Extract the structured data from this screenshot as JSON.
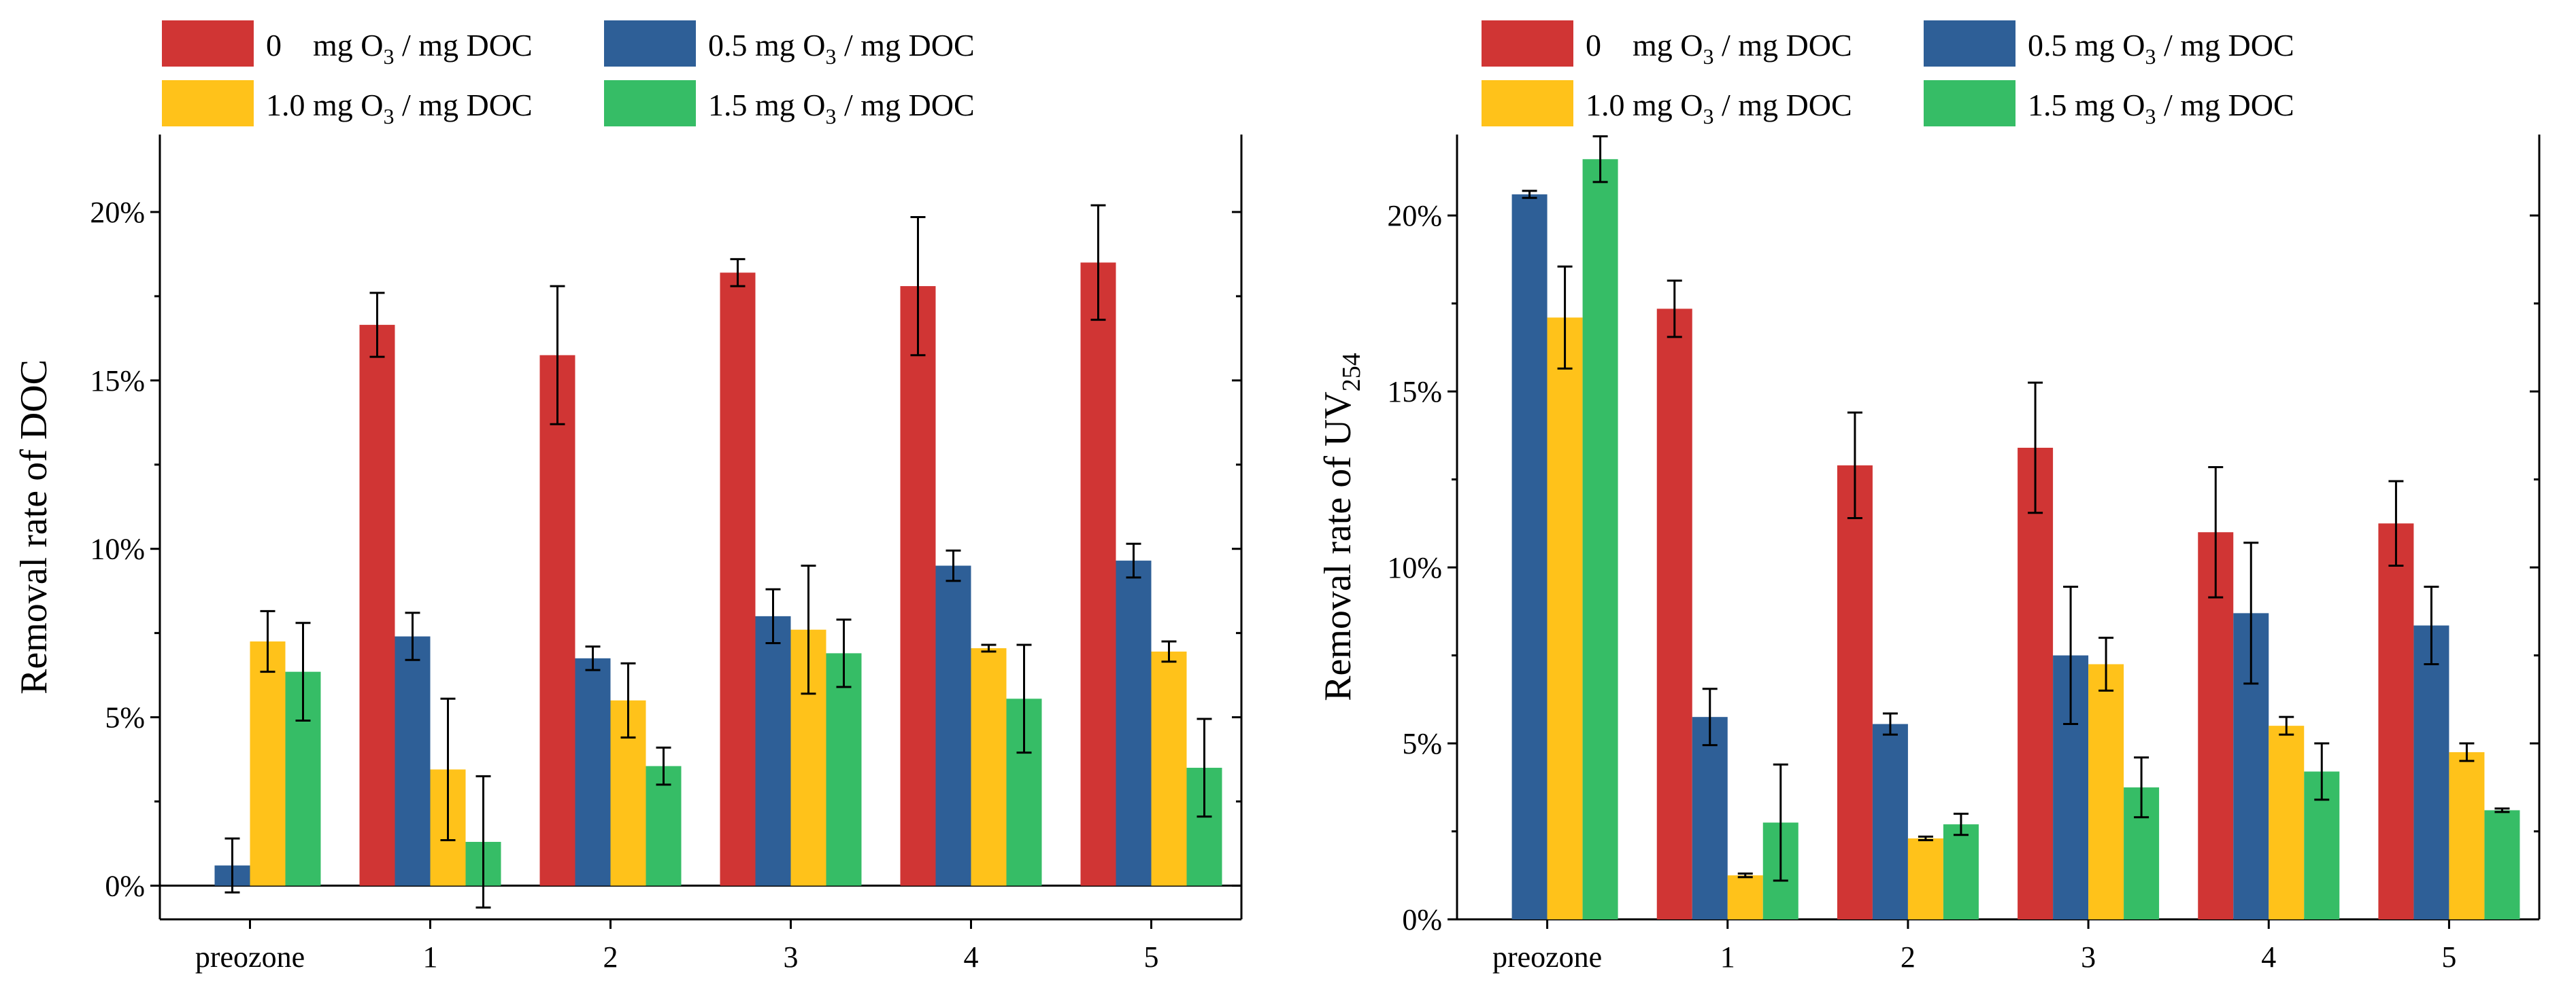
{
  "chart_data": [
    {
      "type": "bar",
      "categories": [
        "preozone",
        "1",
        "2",
        "3",
        "4",
        "5"
      ],
      "ylabel": "Removal rate of DOC",
      "ylim": [
        -1,
        22.3
      ],
      "yticks": [
        "0%",
        "5%",
        "10%",
        "15%",
        "20%"
      ],
      "zero_line": true,
      "legend": {
        "entries": [
          "0    mg O3 / mg DOC",
          "0.5 mg O3 / mg DOC",
          "1.0 mg O3 / mg DOC",
          "1.5 mg O3 / mg DOC"
        ],
        "placement": "top"
      },
      "series": [
        {
          "name": "0 mg O3 / mg DOC",
          "color": "#d03534",
          "values": [
            null,
            16.65,
            15.75,
            18.2,
            17.8,
            18.5
          ],
          "errors": [
            null,
            0.95,
            2.05,
            0.4,
            2.05,
            1.7
          ]
        },
        {
          "name": "0.5 mg O3 / mg DOC",
          "color": "#2e5f97",
          "values": [
            0.6,
            7.4,
            6.75,
            8.0,
            9.5,
            9.65
          ],
          "errors": [
            0.8,
            0.7,
            0.35,
            0.8,
            0.45,
            0.5
          ]
        },
        {
          "name": "1.0 mg O3 / mg DOC",
          "color": "#ffc21a",
          "values": [
            7.25,
            3.45,
            5.5,
            7.6,
            7.05,
            6.95
          ],
          "errors": [
            0.9,
            2.1,
            1.1,
            1.9,
            0.1,
            0.3
          ]
        },
        {
          "name": "1.5 mg O3 / mg DOC",
          "color": "#36bd66",
          "values": [
            6.35,
            1.3,
            3.55,
            6.9,
            5.55,
            3.5
          ],
          "errors": [
            1.45,
            1.95,
            0.55,
            1.0,
            1.6,
            1.45
          ]
        }
      ]
    },
    {
      "type": "bar",
      "categories": [
        "preozone",
        "1",
        "2",
        "3",
        "4",
        "5"
      ],
      "ylabel": "Removal rate of UV",
      "ylabel_sub": "254",
      "ylim": [
        0,
        22.3
      ],
      "yticks": [
        "0%",
        "5%",
        "10%",
        "15%",
        "20%"
      ],
      "zero_line": false,
      "legend": {
        "entries": [
          "0    mg O3 / mg DOC",
          "0.5 mg O3 / mg DOC",
          "1.0 mg O3 / mg DOC",
          "1.5 mg O3 / mg DOC"
        ],
        "placement": "top"
      },
      "series": [
        {
          "name": "0 mg O3 / mg DOC",
          "color": "#d03534",
          "values": [
            null,
            17.35,
            12.9,
            13.4,
            11.0,
            11.25
          ],
          "errors": [
            null,
            0.8,
            1.5,
            1.85,
            1.85,
            1.2
          ]
        },
        {
          "name": "0.5 mg O3 / mg DOC",
          "color": "#2e5f97",
          "values": [
            20.6,
            5.75,
            5.55,
            7.5,
            8.7,
            8.35
          ],
          "errors": [
            0.1,
            0.8,
            0.3,
            1.95,
            2.0,
            1.1
          ]
        },
        {
          "name": "1.0 mg O3 / mg DOC",
          "color": "#ffc21a",
          "values": [
            17.1,
            1.25,
            2.3,
            7.25,
            5.5,
            4.75
          ],
          "errors": [
            1.45,
            0.05,
            0.05,
            0.75,
            0.25,
            0.25
          ]
        },
        {
          "name": "1.5 mg O3 / mg DOC",
          "color": "#36bd66",
          "values": [
            21.6,
            2.75,
            2.7,
            3.75,
            4.2,
            3.1
          ],
          "errors": [
            0.65,
            1.65,
            0.3,
            0.85,
            0.8,
            0.05
          ]
        }
      ]
    }
  ]
}
